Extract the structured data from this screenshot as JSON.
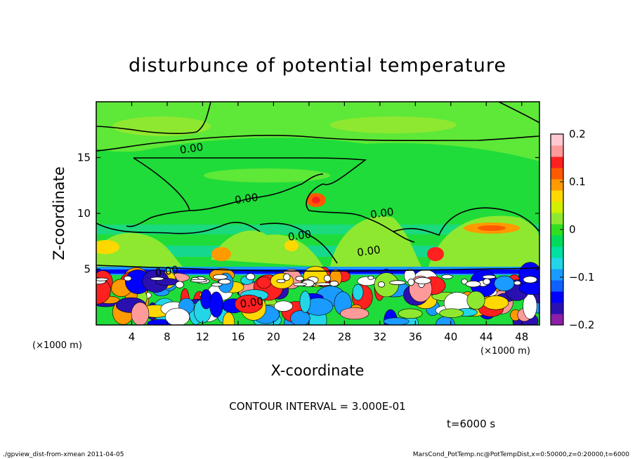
{
  "chart_data": {
    "type": "heatmap",
    "title": "disturbunce of potential temperature",
    "xlabel": "X-coordinate",
    "ylabel": "Z-coordinate",
    "x_unit": "(×1000 m)",
    "y_unit": "(×1000 m)",
    "x_ticks": [
      4,
      8,
      12,
      16,
      20,
      24,
      28,
      32,
      36,
      40,
      44,
      48
    ],
    "y_ticks": [
      5,
      10,
      15
    ],
    "xlim": [
      0,
      50
    ],
    "ylim": [
      0,
      20
    ],
    "colorbar": {
      "ticks": [
        0.2,
        0.1,
        0,
        -0.1,
        -0.2
      ],
      "tick_labels": [
        "0.2",
        "0.1",
        "0",
        "−0.1",
        "−0.2"
      ],
      "range": [
        -0.2,
        0.2
      ],
      "colors": [
        "#8b1fa8",
        "#2a10b0",
        "#0000ff",
        "#1060ff",
        "#1a9bff",
        "#22d6e8",
        "#00e0a0",
        "#00dc5a",
        "#30e020",
        "#8ee830",
        "#d0f000",
        "#ffd800",
        "#ff9a00",
        "#ff5a00",
        "#ff2020",
        "#ff9a9a",
        "#ffc8d0"
      ]
    },
    "contour_labels": [
      {
        "text": "0.00",
        "x": 10.8,
        "z": 15.5
      },
      {
        "text": "0.00",
        "x": 17.0,
        "z": 11.0
      },
      {
        "text": "0.00",
        "x": 32.3,
        "z": 9.7
      },
      {
        "text": "0.00",
        "x": 23.0,
        "z": 7.7
      },
      {
        "text": "0.00",
        "x": 30.8,
        "z": 6.3
      },
      {
        "text": "0.00",
        "x": 8.0,
        "z": 4.5
      },
      {
        "text": "0.00",
        "x": 17.6,
        "z": 1.7
      }
    ],
    "contour_interval_text": "CONTOUR INTERVAL = 3.000E-01",
    "time_text": "t=6000 s",
    "footer_left": "./gpview_dist-from-xmean  2011-04-05",
    "footer_right": "MarsCond_PotTemp.nc@PotTempDist,x=0:50000,z=0:20000,t=6000"
  }
}
